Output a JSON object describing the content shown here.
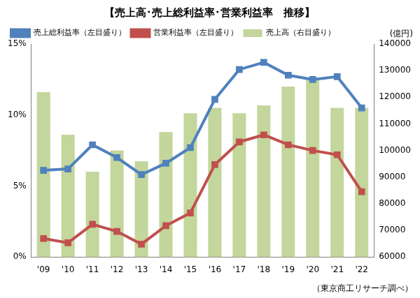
{
  "chart_data": {
    "type": "bar",
    "title": "【売上高･売上総利益率･営業利益率　推移】",
    "note": "（東京商工リサーチ調べ）",
    "y2_label": "(億円)",
    "categories": [
      "'09",
      "'10",
      "'11",
      "'12",
      "'13",
      "'14",
      "'15",
      "'16",
      "'17",
      "'18",
      "'19",
      "'20",
      "'21",
      "'22"
    ],
    "series": [
      {
        "name": "売上高（右目盛り）",
        "type": "bar",
        "axis": "y2",
        "color": "#c3d69b",
        "values": [
          122000,
          106000,
          92000,
          100000,
          96000,
          107000,
          114000,
          116000,
          114000,
          117000,
          124000,
          127000,
          116000,
          116000
        ]
      },
      {
        "name": "売上総利益率（左目盛り）",
        "type": "line",
        "color": "#4f81bd",
        "marker": "square",
        "line_style": "solid",
        "values": [
          6.1,
          6.2,
          7.9,
          7.0,
          5.8,
          6.6,
          7.7,
          11.1,
          13.2,
          13.7,
          12.8,
          12.5,
          12.7,
          10.5
        ]
      },
      {
        "name": "営業利益率（左目盛り）",
        "type": "line",
        "color": "#c0504d",
        "marker": "square",
        "line_style": "solid",
        "values": [
          1.3,
          1.0,
          2.3,
          1.8,
          0.9,
          2.2,
          3.1,
          6.5,
          8.1,
          8.6,
          7.9,
          7.5,
          7.2,
          4.6
        ]
      }
    ],
    "ylim": [
      0,
      15
    ],
    "yticks": [
      {
        "value": 0,
        "label": "0%"
      },
      {
        "value": 5,
        "label": "5%"
      },
      {
        "value": 10,
        "label": "10%"
      },
      {
        "value": 15,
        "label": "15%"
      }
    ],
    "y2lim": [
      60000,
      140000
    ],
    "y2ticks": [
      60000,
      70000,
      80000,
      90000,
      100000,
      110000,
      120000,
      130000,
      140000
    ],
    "grid": false,
    "legend": "upper left"
  }
}
